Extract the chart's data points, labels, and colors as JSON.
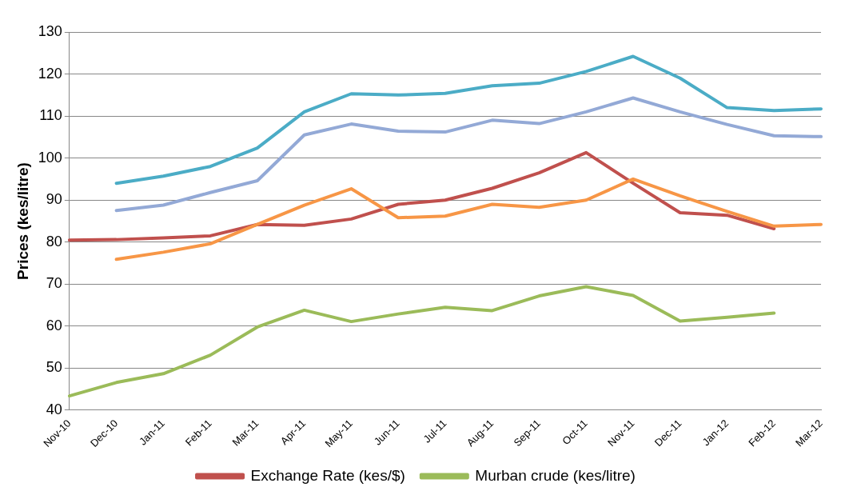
{
  "chart_data": {
    "type": "line",
    "ylabel": "Prices (kes/litre)",
    "categories": [
      "Nov-10",
      "Dec-10",
      "Jan-11",
      "Feb-11",
      "Mar-11",
      "Apr-11",
      "May-11",
      "Jun-11",
      "Jul-11",
      "Aug-11",
      "Sep-11",
      "Oct-11",
      "Nov-11",
      "Dec-11",
      "Jan-12",
      "Feb-12",
      "Mar-12"
    ],
    "series": [
      {
        "color": "#4bacc6",
        "values": [
          null,
          94,
          95.7,
          98,
          102.4,
          111,
          115.3,
          115,
          115.4,
          117.2,
          117.8,
          120.6,
          124.2,
          119,
          112,
          111.3,
          111.7
        ]
      },
      {
        "color": "#93a9d6",
        "values": [
          null,
          87.5,
          88.8,
          91.8,
          94.6,
          105.5,
          108.1,
          106.4,
          106.2,
          109,
          108.2,
          111,
          114.3,
          111,
          108,
          105.3,
          105.1
        ]
      },
      {
        "color": "#f79646",
        "values": [
          null,
          75.9,
          77.6,
          79.6,
          84.2,
          88.8,
          92.7,
          85.8,
          86.2,
          89,
          88.3,
          90,
          95,
          91,
          87.3,
          83.8,
          84.2
        ]
      },
      {
        "name": "Exchange Rate (kes/$)",
        "color": "#c0504d",
        "values": [
          80.5,
          80.6,
          81,
          81.5,
          84.2,
          84,
          85.5,
          89,
          90,
          92.8,
          96.5,
          101.3,
          94,
          87,
          86.4,
          83.2,
          null
        ]
      },
      {
        "name": "Murban crude (kes/litre)",
        "color": "#9bbb59",
        "values": [
          43.4,
          46.6,
          48.7,
          53.1,
          59.8,
          63.8,
          61.1,
          62.9,
          64.5,
          63.7,
          67.2,
          69.4,
          67.3,
          61.2,
          62.1,
          63.1,
          null
        ]
      }
    ],
    "ylim": [
      40,
      130
    ],
    "yticks": [
      40,
      50,
      60,
      70,
      80,
      90,
      100,
      110,
      120,
      130
    ],
    "grid": "y",
    "legend": "bottom",
    "marker": "none",
    "line_style": "solid"
  }
}
